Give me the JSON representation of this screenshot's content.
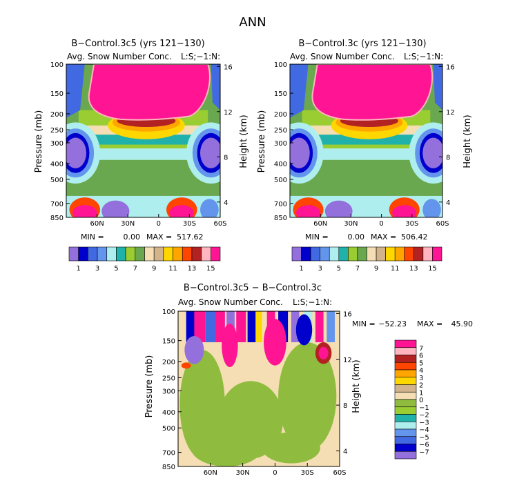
{
  "figure_title": "ANN",
  "colors": {
    "abs": [
      "#9370DB",
      "#0000CD",
      "#4169E1",
      "#6495ED",
      "#AFEEEE",
      "#20B2AA",
      "#9ACD32",
      "#6AA84F",
      "#F5DEB3",
      "#D2B48C",
      "#FFD700",
      "#FFA500",
      "#FF4500",
      "#B22222",
      "#FFB6C1",
      "#FF1493"
    ],
    "diff": [
      "#9370DB",
      "#0000CD",
      "#4169E1",
      "#6495ED",
      "#AFEEEE",
      "#20B2AA",
      "#9ACD32",
      "#8FBC3F",
      "#F5DEB3",
      "#D2B48C",
      "#FFD700",
      "#FFA500",
      "#FF4500",
      "#B22222",
      "#FFB6C1",
      "#FF1493"
    ]
  },
  "chart_data": [
    {
      "type": "heatmap",
      "title": "B−Control.3c5 (yrs 121−130)",
      "subtitle": "Avg. Snow Number Conc.",
      "unit_label": "L:S;−1:N:",
      "ylabel": "Pressure (mb)",
      "y2label": "Height (km)",
      "xticks": [
        "60N",
        "30N",
        "0",
        "30S",
        "60S"
      ],
      "yticks": [
        "100",
        "150",
        "200",
        "250",
        "300",
        "400",
        "500",
        "700",
        "850"
      ],
      "y2ticks": [
        "16",
        "12",
        "8",
        "4"
      ],
      "stats": {
        "min_label": "MIN =",
        "min": "0.00",
        "max_label": "MAX =",
        "max": "517.62"
      },
      "colorbar_labels": [
        "1",
        "3",
        "5",
        "7",
        "9",
        "11",
        "13",
        "15"
      ]
    },
    {
      "type": "heatmap",
      "title": "B−Control.3c (yrs 121−130)",
      "subtitle": "Avg. Snow Number Conc.",
      "unit_label": "L:S;−1:N:",
      "ylabel": "Pressure (mb)",
      "y2label": "Height (km)",
      "xticks": [
        "60N",
        "30N",
        "0",
        "30S",
        "60S"
      ],
      "yticks": [
        "100",
        "150",
        "200",
        "250",
        "300",
        "400",
        "500",
        "700",
        "850"
      ],
      "y2ticks": [
        "16",
        "12",
        "8",
        "4"
      ],
      "stats": {
        "min_label": "MIN =",
        "min": "0.00",
        "max_label": "MAX =",
        "max": "506.42"
      },
      "colorbar_labels": [
        "1",
        "3",
        "5",
        "7",
        "9",
        "11",
        "13",
        "15"
      ]
    },
    {
      "type": "heatmap",
      "title": "B−Control.3c5 − B−Control.3c",
      "subtitle": "Avg. Snow Number Conc.",
      "unit_label": "L:S;−1:N:",
      "ylabel": "Pressure (mb)",
      "y2label": "Height (km)",
      "xticks": [
        "60N",
        "30N",
        "0",
        "30S",
        "60S"
      ],
      "yticks": [
        "100",
        "150",
        "200",
        "250",
        "300",
        "400",
        "500",
        "700",
        "850"
      ],
      "y2ticks": [
        "16",
        "12",
        "8",
        "4"
      ],
      "stats": {
        "min_label": "MIN =",
        "min": "−52.23",
        "max_label": "MAX =",
        "max": "45.90"
      },
      "colorbar_labels": [
        "7",
        "6",
        "5",
        "4",
        "3",
        "2",
        "1",
        "0",
        "−1",
        "−2",
        "−3",
        "−4",
        "−5",
        "−6",
        "−7"
      ]
    }
  ]
}
